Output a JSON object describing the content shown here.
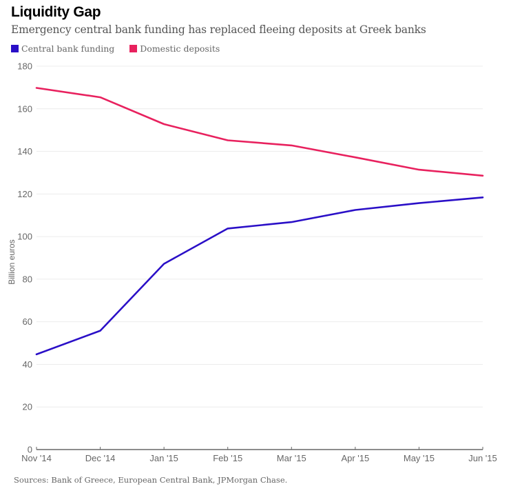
{
  "header": {
    "title": "Liquidity Gap",
    "subtitle": "Emergency central bank funding has replaced fleeing deposits at Greek banks"
  },
  "footer": {
    "source": "Sources: Bank of Greece, European Central Bank, JPMorgan Chase."
  },
  "colors": {
    "central_bank_funding": "#2a0fc7",
    "domestic_deposits": "#e8215e",
    "grid": "#ececec",
    "axis": "#666666"
  },
  "chart_data": {
    "type": "line",
    "title": "Liquidity Gap",
    "subtitle": "Emergency central bank funding has replaced fleeing deposits at Greek banks",
    "xlabel": "",
    "ylabel": "Billion euros",
    "categories": [
      "Nov '14",
      "Dec '14",
      "Jan '15",
      "Feb '15",
      "Mar '15",
      "Apr '15",
      "May '15",
      "Jun '15"
    ],
    "ylim": [
      0,
      180
    ],
    "yticks": [
      0,
      20,
      40,
      60,
      80,
      100,
      120,
      140,
      160,
      180
    ],
    "grid": true,
    "legend_position": "top-left",
    "series": [
      {
        "name": "Central bank funding",
        "color": "#2a0fc7",
        "values": [
          44.7,
          55.8,
          87.2,
          103.8,
          106.8,
          112.5,
          115.7,
          118.4
        ]
      },
      {
        "name": "Domestic deposits",
        "color": "#e8215e",
        "values": [
          169.8,
          165.4,
          152.8,
          145.2,
          142.8,
          137.2,
          131.4,
          128.6
        ]
      }
    ]
  }
}
